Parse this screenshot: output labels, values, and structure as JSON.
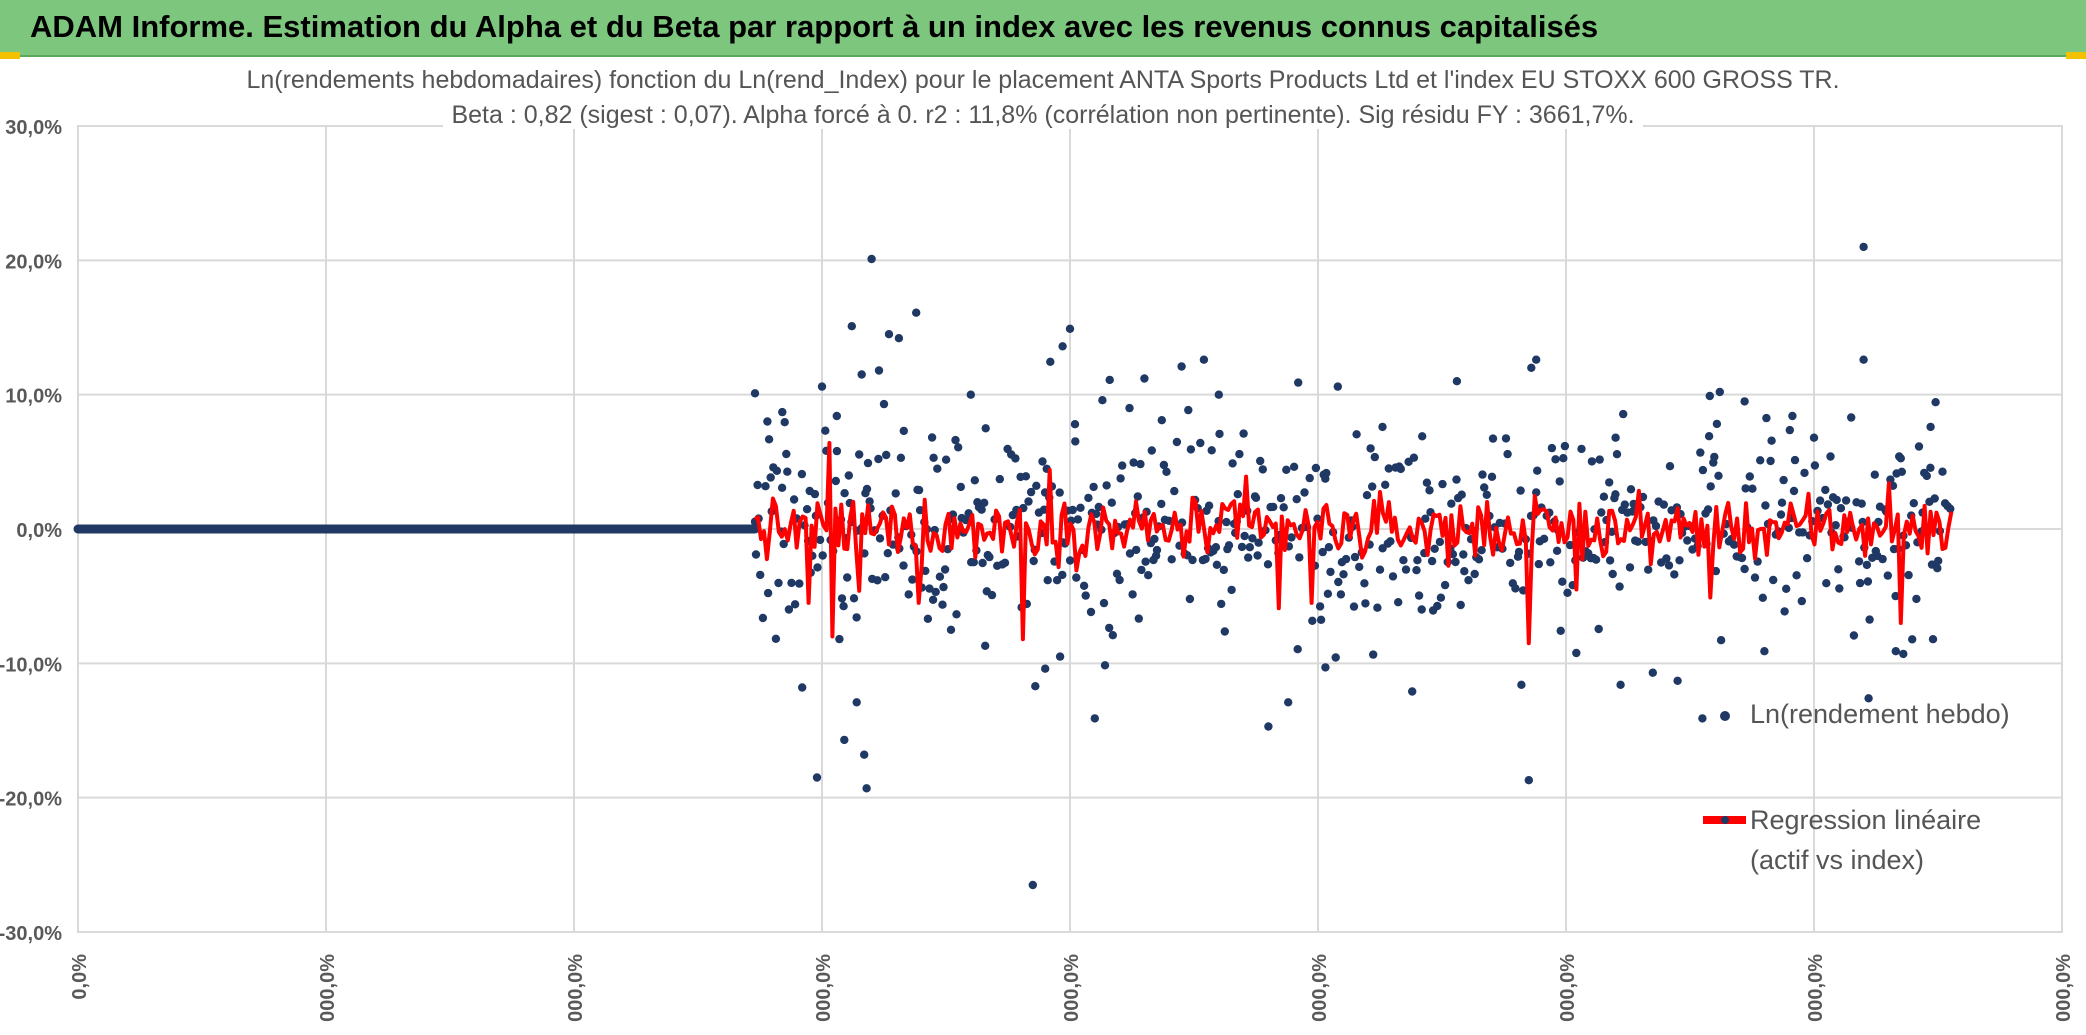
{
  "header": {
    "title": "ADAM Informe. Estimation du Alpha et du Beta par rapport à un index avec les revenus connus capitalisés"
  },
  "colors": {
    "header_bg": "#7dc67d",
    "scatter": "#1f3864",
    "regression": "#ff0000",
    "grid": "#d9d9d9",
    "axis_text": "#595959"
  },
  "chart_data": {
    "type": "scatter",
    "title_line1": "Ln(rendements hebdomadaires) fonction du Ln(rend_Index) pour le placement ANTA Sports Products Ltd et l'index EU STOXX 600 GROSS TR.",
    "title_line2": "Beta : 0,82 (sigest : 0,07). Alpha forcé à 0. r2 : 11,8% (corrélation non pertinente). Sig résidu FY : 3661,7%.",
    "y_tick_labels": [
      "30,0%",
      "20,0%",
      "10,0%",
      "0,0%",
      "-10,0%",
      "-20,0%",
      "-30,0%"
    ],
    "y_tick_values": [
      30,
      20,
      10,
      0,
      -10,
      -20,
      -30
    ],
    "ylim": [
      -30,
      30
    ],
    "x_tick_labels": [
      "0,0%",
      "000,0%",
      "000,0%",
      "000,0%",
      "000,0%",
      "000,0%",
      "000,0%",
      "000,0%",
      "000,0%"
    ],
    "xlim": [
      0,
      8
    ],
    "grid": true,
    "legend": [
      {
        "name": "Ln(rendement hebdo)",
        "marker": "dot"
      },
      {
        "name_line1": "Regression linéaire",
        "name_line2": "(actif vs index)",
        "marker": "line"
      }
    ],
    "series": [
      {
        "name": "Ln(rendement hebdo)",
        "style": "scatter",
        "zero_segment": {
          "x_start": 0,
          "x_end": 2.73,
          "y": 0
        },
        "x_start": 2.73,
        "x_end": 7.56,
        "spread": 3.2,
        "outliers": [
          {
            "x": 2.73,
            "y": 10.1
          },
          {
            "x": 2.78,
            "y": 8.0
          },
          {
            "x": 2.84,
            "y": 8.7
          },
          {
            "x": 2.92,
            "y": -11.8
          },
          {
            "x": 2.98,
            "y": -18.5
          },
          {
            "x": 3.0,
            "y": 10.6
          },
          {
            "x": 3.06,
            "y": 5.8
          },
          {
            "x": 3.09,
            "y": -15.7
          },
          {
            "x": 3.12,
            "y": 15.1
          },
          {
            "x": 3.14,
            "y": -12.9
          },
          {
            "x": 3.17,
            "y": -16.8
          },
          {
            "x": 3.18,
            "y": -19.3
          },
          {
            "x": 3.16,
            "y": 11.5
          },
          {
            "x": 3.2,
            "y": 20.1
          },
          {
            "x": 3.23,
            "y": 11.8
          },
          {
            "x": 3.25,
            "y": 9.3
          },
          {
            "x": 3.27,
            "y": 14.5
          },
          {
            "x": 3.31,
            "y": 14.2
          },
          {
            "x": 3.33,
            "y": 7.3
          },
          {
            "x": 3.38,
            "y": 16.1
          },
          {
            "x": 3.45,
            "y": 5.3
          },
          {
            "x": 3.52,
            "y": -7.5
          },
          {
            "x": 3.6,
            "y": 10.0
          },
          {
            "x": 3.66,
            "y": 7.5
          },
          {
            "x": 3.86,
            "y": -11.7
          },
          {
            "x": 3.9,
            "y": -10.4
          },
          {
            "x": 3.97,
            "y": 13.6
          },
          {
            "x": 4.0,
            "y": 14.9
          },
          {
            "x": 3.96,
            "y": -9.5
          },
          {
            "x": 3.85,
            "y": -26.5
          },
          {
            "x": 4.02,
            "y": 7.8
          },
          {
            "x": 4.1,
            "y": -14.1
          },
          {
            "x": 4.16,
            "y": 11.1
          },
          {
            "x": 4.24,
            "y": 9.0
          },
          {
            "x": 4.3,
            "y": 11.2
          },
          {
            "x": 4.37,
            "y": 8.1
          },
          {
            "x": 4.45,
            "y": 12.1
          },
          {
            "x": 4.54,
            "y": 12.6
          },
          {
            "x": 4.6,
            "y": 10.0
          },
          {
            "x": 4.7,
            "y": 7.1
          },
          {
            "x": 4.8,
            "y": -14.7
          },
          {
            "x": 4.88,
            "y": -12.9
          },
          {
            "x": 4.92,
            "y": 10.9
          },
          {
            "x": 5.03,
            "y": -10.3
          },
          {
            "x": 5.08,
            "y": 10.6
          },
          {
            "x": 5.26,
            "y": 7.6
          },
          {
            "x": 5.38,
            "y": -12.1
          },
          {
            "x": 5.42,
            "y": 6.9
          },
          {
            "x": 5.56,
            "y": 11.0
          },
          {
            "x": 5.86,
            "y": 12.0
          },
          {
            "x": 5.88,
            "y": 12.6
          },
          {
            "x": 5.85,
            "y": -18.7
          },
          {
            "x": 5.82,
            "y": -11.6
          },
          {
            "x": 6.2,
            "y": 6.8
          },
          {
            "x": 6.22,
            "y": -11.6
          },
          {
            "x": 6.35,
            "y": -10.7
          },
          {
            "x": 6.45,
            "y": -11.3
          },
          {
            "x": 6.55,
            "y": -14.1
          },
          {
            "x": 6.58,
            "y": 9.9
          },
          {
            "x": 6.62,
            "y": 10.2
          },
          {
            "x": 6.72,
            "y": 9.5
          },
          {
            "x": 6.8,
            "y": -9.1
          },
          {
            "x": 7.0,
            "y": 6.8
          },
          {
            "x": 7.15,
            "y": 8.3
          },
          {
            "x": 7.2,
            "y": 21.0
          },
          {
            "x": 7.2,
            "y": 12.6
          },
          {
            "x": 7.22,
            "y": -12.6
          },
          {
            "x": 7.33,
            "y": -9.1
          },
          {
            "x": 7.36,
            "y": -9.3
          },
          {
            "x": 7.47,
            "y": 7.6
          },
          {
            "x": 7.48,
            "y": -8.2
          }
        ]
      },
      {
        "name": "Regression linéaire (actif vs index)",
        "style": "line",
        "x_start": 2.73,
        "x_end": 7.56,
        "beta": 0.82,
        "spikes": [
          {
            "x": 3.04,
            "y": 6.4
          },
          {
            "x": 3.05,
            "y": -8.0
          },
          {
            "x": 2.95,
            "y": -5.5
          },
          {
            "x": 3.15,
            "y": -4.6
          },
          {
            "x": 3.4,
            "y": -5.5
          },
          {
            "x": 3.82,
            "y": -8.2
          },
          {
            "x": 3.92,
            "y": 4.4
          },
          {
            "x": 4.7,
            "y": 3.9
          },
          {
            "x": 4.84,
            "y": -5.9
          },
          {
            "x": 4.97,
            "y": -5.5
          },
          {
            "x": 5.85,
            "y": -11.7
          },
          {
            "x": 5.84,
            "y": -8.5
          },
          {
            "x": 6.04,
            "y": 5.9
          },
          {
            "x": 6.03,
            "y": -4.5
          },
          {
            "x": 6.57,
            "y": -5.1
          },
          {
            "x": 7.34,
            "y": -7.0
          },
          {
            "x": 7.3,
            "y": 3.4
          }
        ]
      }
    ]
  }
}
